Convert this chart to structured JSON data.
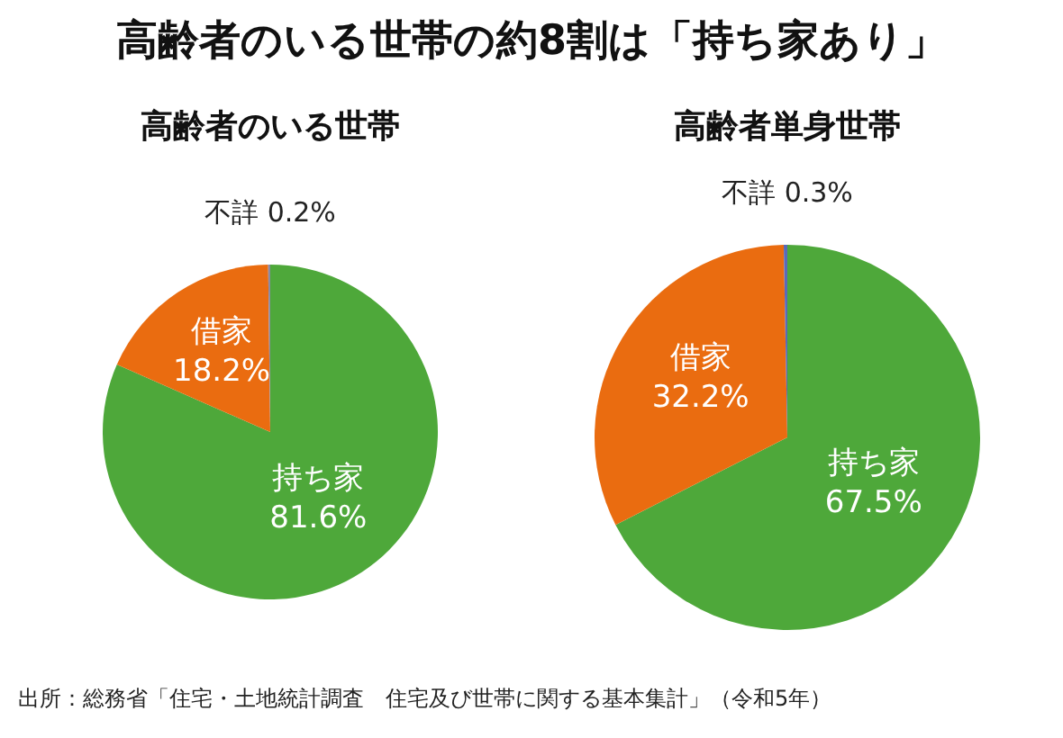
{
  "chart_data": [
    {
      "type": "pie",
      "title": "高齢者のいる世帯の約8割は「持ち家あり」",
      "subtitle": "高齢者のいる世帯",
      "categories": [
        "持ち家",
        "借家",
        "不詳"
      ],
      "values": [
        81.6,
        18.2,
        0.2
      ],
      "value_labels": [
        "81.6%",
        "18.2%",
        "0.2%"
      ],
      "colors": [
        "#4ea83a",
        "#ea6c10",
        "#8a8aa8"
      ]
    },
    {
      "type": "pie",
      "title": "高齢者単身世帯",
      "categories": [
        "持ち家",
        "借家",
        "不詳"
      ],
      "values": [
        67.5,
        32.2,
        0.3
      ],
      "value_labels": [
        "67.5%",
        "32.2%",
        "0.3%"
      ],
      "colors": [
        "#4ea83a",
        "#ea6c10",
        "#5a6ab8"
      ],
      "annotations": [
        "出所：総務省「住宅・土地統計調査　住宅及び世帯に関する基本集計」（令和5年）"
      ]
    }
  ]
}
